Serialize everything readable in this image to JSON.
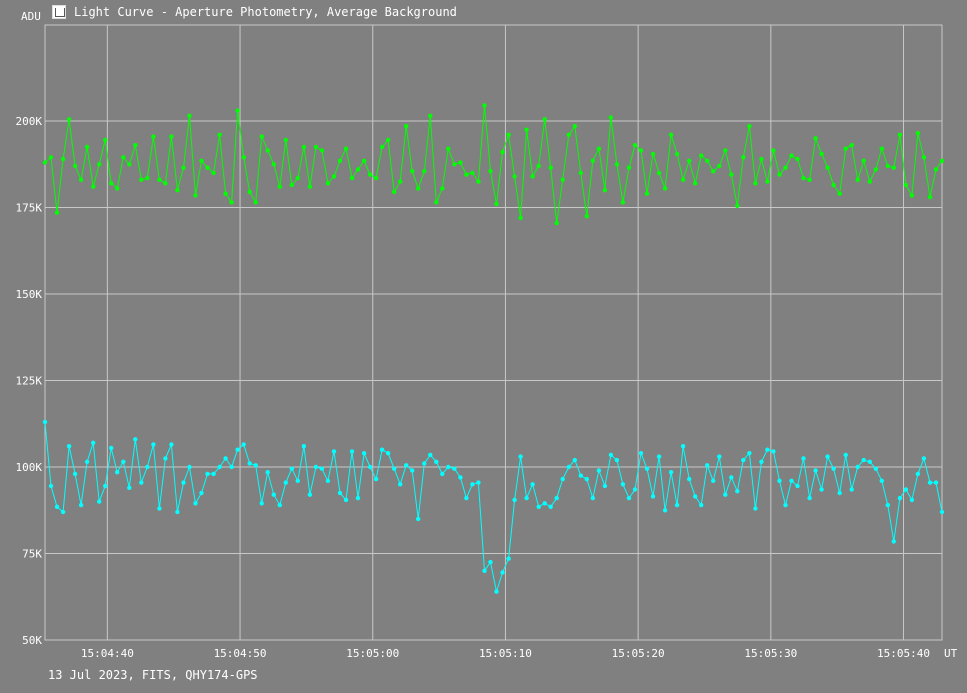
{
  "header": {
    "title": "Light Curve - Aperture Photometry, Average Background",
    "app_icon": "camera-app-icon"
  },
  "axes": {
    "y_unit": "ADU",
    "x_unit": "UT"
  },
  "footer": {
    "caption": "13 Jul 2023, FITS, QHY174-GPS"
  },
  "colors": {
    "background": "#808080",
    "grid": "#c8c8c8",
    "series_green": "#00ff00",
    "series_cyan": "#00ffff"
  },
  "chart_data": {
    "type": "line",
    "title": "Light Curve - Aperture Photometry, Average Background",
    "xlabel": "UT",
    "ylabel": "ADU",
    "x_start": "15:04:35.3",
    "x_range_seconds": [
      0,
      67.6
    ],
    "ylim": [
      50000,
      200000
    ],
    "grid": true,
    "y_ticks": [
      {
        "value": 50000,
        "label": "50K"
      },
      {
        "value": 75000,
        "label": "75K"
      },
      {
        "value": 100000,
        "label": "100K"
      },
      {
        "value": 125000,
        "label": "125K"
      },
      {
        "value": 150000,
        "label": "150K"
      },
      {
        "value": 175000,
        "label": "175K"
      },
      {
        "value": 200000,
        "label": "200K"
      }
    ],
    "x_ticks": [
      {
        "t": 4.7,
        "label": "15:04:40"
      },
      {
        "t": 14.7,
        "label": "15:04:50"
      },
      {
        "t": 24.7,
        "label": "15:05:00"
      },
      {
        "t": 34.7,
        "label": "15:05:10"
      },
      {
        "t": 44.7,
        "label": "15:05:20"
      },
      {
        "t": 54.7,
        "label": "15:05:30"
      },
      {
        "t": 64.7,
        "label": "15:05:40"
      }
    ],
    "series": [
      {
        "color": "#00ff00",
        "values": [
          188000,
          189500,
          173500,
          189000,
          200500,
          187000,
          183000,
          192500,
          181000,
          187500,
          194500,
          182000,
          180500,
          189500,
          187500,
          193000,
          183000,
          183500,
          195500,
          183000,
          182000,
          195500,
          180000,
          186500,
          201500,
          178500,
          188500,
          186500,
          185000,
          196000,
          179000,
          176500,
          203000,
          189500,
          179500,
          176500,
          195500,
          191500,
          187500,
          181000,
          194500,
          181500,
          183500,
          192500,
          181000,
          192500,
          191500,
          182000,
          184000,
          188500,
          192000,
          183500,
          186000,
          188500,
          184500,
          183500,
          192500,
          194500,
          179500,
          182500,
          198500,
          185500,
          180500,
          185500,
          201500,
          176500,
          180500,
          192000,
          187500,
          188000,
          184500,
          185000,
          182500,
          204500,
          185500,
          176000,
          191000,
          196000,
          184000,
          172000,
          197500,
          184000,
          187000,
          200500,
          186500,
          170500,
          183000,
          196000,
          198500,
          185000,
          172500,
          188500,
          192000,
          180000,
          201000,
          187500,
          176500,
          186500,
          193000,
          191500,
          179000,
          190500,
          185000,
          180500,
          196000,
          190500,
          183000,
          188500,
          182000,
          190000,
          188500,
          185500,
          187000,
          191500,
          184500,
          175500,
          189500,
          198500,
          182000,
          189000,
          182500,
          191500,
          184500,
          186500,
          190000,
          189000,
          183500,
          183000,
          195000,
          190500,
          186500,
          181500,
          179000,
          192000,
          193000,
          183000,
          188500,
          182500,
          186000,
          192000,
          187000,
          186500,
          196000,
          181500,
          178500,
          196500,
          189500,
          178000,
          186000,
          188500
        ]
      },
      {
        "color": "#00ffff",
        "values": [
          113000,
          94500,
          88500,
          87000,
          106000,
          98000,
          89000,
          101500,
          107000,
          90000,
          94500,
          105500,
          98500,
          101500,
          94000,
          108000,
          95500,
          100000,
          106500,
          88000,
          102500,
          106500,
          87000,
          95500,
          100000,
          89500,
          92500,
          98000,
          98000,
          100000,
          102500,
          100000,
          105000,
          106500,
          101000,
          100500,
          89500,
          98500,
          92000,
          89000,
          95500,
          99500,
          96000,
          106000,
          92000,
          100000,
          99500,
          96000,
          104500,
          92500,
          90500,
          104500,
          91000,
          104000,
          100000,
          96500,
          105000,
          104000,
          99500,
          95000,
          100500,
          99000,
          85000,
          101000,
          103500,
          101500,
          98000,
          100000,
          99500,
          97000,
          91000,
          95000,
          95500,
          70000,
          72500,
          64000,
          69500,
          73500,
          90500,
          103000,
          91000,
          95000,
          88500,
          89500,
          88500,
          91000,
          96500,
          100000,
          102000,
          97500,
          96500,
          91000,
          99000,
          94500,
          103500,
          102000,
          95000,
          91000,
          93500,
          104000,
          99500,
          91500,
          103000,
          87500,
          98500,
          89000,
          106000,
          96500,
          91500,
          89000,
          100500,
          96000,
          103000,
          92000,
          97000,
          93000,
          102000,
          104000,
          88000,
          101500,
          105000,
          104500,
          96000,
          89000,
          96000,
          94500,
          102500,
          91000,
          99000,
          93500,
          103000,
          99500,
          92500,
          103500,
          93500,
          100000,
          102000,
          101500,
          99500,
          96000,
          89000,
          78500,
          91000,
          93500,
          90500,
          98000,
          102500,
          95500,
          95500,
          87000
        ]
      }
    ]
  }
}
